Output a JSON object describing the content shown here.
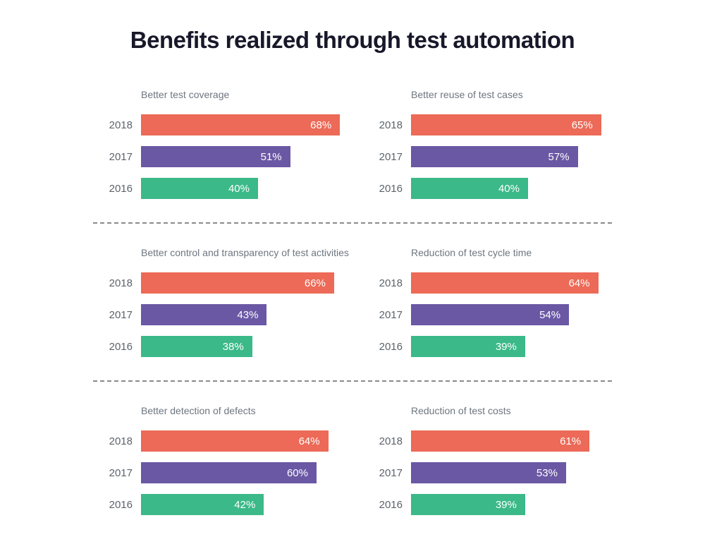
{
  "page_title": "Benefits realized through test automation",
  "chart_data": {
    "type": "bar",
    "orientation": "horizontal",
    "title": "Benefits realized through test automation",
    "categories": [
      "2018",
      "2017",
      "2016"
    ],
    "unit": "%",
    "xlim": [
      0,
      100
    ],
    "grid": false,
    "legend": "none (years labeled per bar, color-coded)",
    "series_colors": {
      "2018": "#ec6a57",
      "2017": "#6a58a4",
      "2016": "#3bb988"
    },
    "charts": [
      {
        "title": "Better test coverage",
        "bars": [
          {
            "year": "2018",
            "value": 68,
            "label": "68%"
          },
          {
            "year": "2017",
            "value": 51,
            "label": "51%"
          },
          {
            "year": "2016",
            "value": 40,
            "label": "40%"
          }
        ]
      },
      {
        "title": "Better reuse of test cases",
        "bars": [
          {
            "year": "2018",
            "value": 65,
            "label": "65%"
          },
          {
            "year": "2017",
            "value": 57,
            "label": "57%"
          },
          {
            "year": "2016",
            "value": 40,
            "label": "40%"
          }
        ]
      },
      {
        "title": "Better control and transparency of test activities",
        "bars": [
          {
            "year": "2018",
            "value": 66,
            "label": "66%"
          },
          {
            "year": "2017",
            "value": 43,
            "label": "43%"
          },
          {
            "year": "2016",
            "value": 38,
            "label": "38%"
          }
        ]
      },
      {
        "title": "Reduction of test cycle time",
        "bars": [
          {
            "year": "2018",
            "value": 64,
            "label": "64%"
          },
          {
            "year": "2017",
            "value": 54,
            "label": "54%"
          },
          {
            "year": "2016",
            "value": 39,
            "label": "39%"
          }
        ]
      },
      {
        "title": "Better detection of defects",
        "bars": [
          {
            "year": "2018",
            "value": 64,
            "label": "64%"
          },
          {
            "year": "2017",
            "value": 60,
            "label": "60%"
          },
          {
            "year": "2016",
            "value": 42,
            "label": "42%"
          }
        ]
      },
      {
        "title": "Reduction of test costs",
        "bars": [
          {
            "year": "2018",
            "value": 61,
            "label": "61%"
          },
          {
            "year": "2017",
            "value": 53,
            "label": "53%"
          },
          {
            "year": "2016",
            "value": 39,
            "label": "39%"
          }
        ]
      }
    ]
  }
}
